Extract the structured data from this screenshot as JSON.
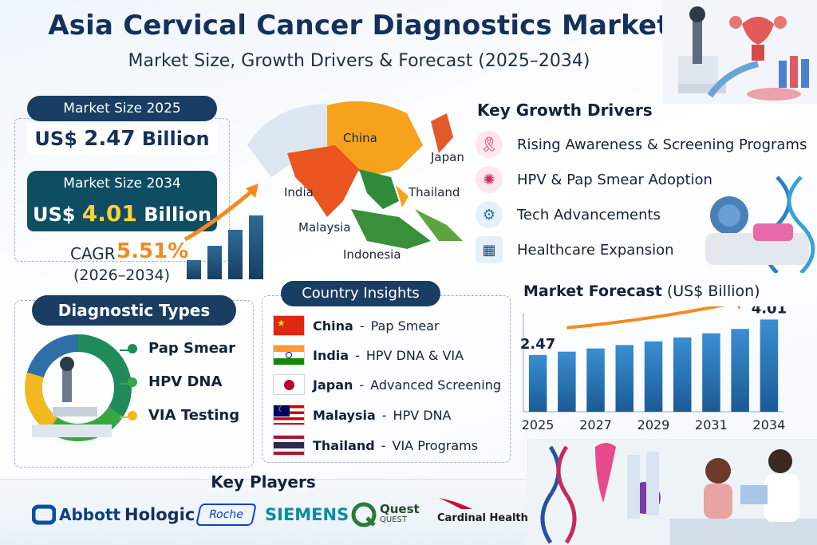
{
  "header": {
    "title": "Asia Cervical Cancer Diagnostics Market",
    "subtitle": "Market Size, Growth Drivers & Forecast (2025–2034)"
  },
  "market_size": {
    "label_2025": "Market Size 2025",
    "prefix_2025": "US$",
    "value_2025": "2.47",
    "unit_2025": "Billion",
    "label_2034": "Market Size 2034",
    "prefix_2034": "US$",
    "value_2034": "4.01",
    "unit_2034": "Billion",
    "cagr_label": "CAGR",
    "cagr_value": "5.51%",
    "cagr_range": "(2026–2034)"
  },
  "map": {
    "labels": {
      "china": "China",
      "japan": "Japan",
      "india": "India",
      "thailand": "Thailand",
      "malaysia": "Malaysia",
      "indonesia": "Indonesia"
    }
  },
  "growth_drivers": {
    "title": "Key Growth Drivers",
    "items": [
      {
        "label": "Rising Awareness & Screening Programs",
        "icon": "ribbon-icon"
      },
      {
        "label": "HPV & Pap Smear Adoption",
        "icon": "virus-icon"
      },
      {
        "label": "Tech Advancements",
        "icon": "gear-icon"
      },
      {
        "label": "Healthcare Expansion",
        "icon": "hospital-icon"
      }
    ]
  },
  "diagnostic_types": {
    "title": "Diagnostic Types",
    "items": [
      {
        "label": "Pap Smear",
        "color": "#1f8a5a"
      },
      {
        "label": "HPV DNA",
        "color": "#3aa545"
      },
      {
        "label": "VIA Testing",
        "color": "#f2b81f"
      }
    ]
  },
  "country_insights": {
    "title": "Country Insights",
    "rows": [
      {
        "country": "China",
        "sep": "-",
        "detail": "Pap Smear"
      },
      {
        "country": "India",
        "sep": "-",
        "detail": "HPV DNA & VIA"
      },
      {
        "country": "Japan",
        "sep": "-",
        "detail": "Advanced Screening"
      },
      {
        "country": "Malaysia",
        "sep": "-",
        "detail": "HPV DNA"
      },
      {
        "country": "Thailand",
        "sep": "-",
        "detail": "VIA Programs"
      }
    ]
  },
  "forecast": {
    "title_bold": "Market Forecast",
    "title_unit": "(US$ Billion)"
  },
  "chart_data": {
    "type": "bar",
    "categories": [
      "2025",
      "",
      "2027",
      "",
      "2029",
      "",
      "2031",
      "",
      "2034"
    ],
    "values": [
      2.47,
      2.61,
      2.75,
      2.9,
      3.06,
      3.23,
      3.41,
      3.6,
      4.01
    ],
    "data_labels": [
      "2.47",
      "",
      "",
      "",
      "",
      "",
      "",
      "",
      "4.01"
    ],
    "ylim": [
      0,
      4.3
    ],
    "grid": false,
    "colors": {
      "bar_top": "#3a8fd0",
      "bar_bottom": "#1a5a96"
    }
  },
  "key_players": {
    "title": "Key Players",
    "logos": [
      "Abbott",
      "Hologic",
      "Roche",
      "SIEMENS",
      "Quest",
      "QUEST",
      "Cardinal Health"
    ]
  }
}
